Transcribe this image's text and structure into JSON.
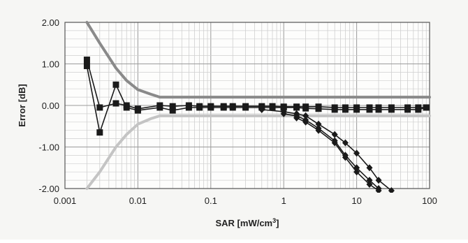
{
  "chart_data": {
    "type": "line",
    "title": "",
    "xlabel": "SAR [mW/cm",
    "xlabel_sup": "3",
    "xlabel_end": "]",
    "ylabel": "Error [dB]",
    "xscale": "log",
    "xlim": [
      0.001,
      100
    ],
    "ylim": [
      -2.0,
      2.0
    ],
    "grid": true,
    "x_ticks": [
      0.001,
      0.01,
      0.1,
      1,
      10,
      100
    ],
    "x_tick_labels": [
      "0.001",
      "0.01",
      "0.1",
      "1",
      "10",
      "100"
    ],
    "y_ticks": [
      2.0,
      1.0,
      0.0,
      -1.0,
      -2.0
    ],
    "y_tick_labels": [
      "2.00",
      "1.00",
      "0.00",
      "-1.00",
      "-2.00"
    ],
    "bounds": [
      {
        "color": "#8a8a8a",
        "points": [
          [
            0.002,
            2.0
          ],
          [
            0.003,
            1.5
          ],
          [
            0.005,
            0.9
          ],
          [
            0.007,
            0.6
          ],
          [
            0.01,
            0.38
          ],
          [
            0.015,
            0.27
          ],
          [
            0.02,
            0.2
          ],
          [
            100,
            0.2
          ]
        ]
      },
      {
        "color": "#c4c4c4",
        "points": [
          [
            0.002,
            -2.0
          ],
          [
            0.003,
            -1.6
          ],
          [
            0.005,
            -1.0
          ],
          [
            0.007,
            -0.7
          ],
          [
            0.01,
            -0.45
          ],
          [
            0.015,
            -0.32
          ],
          [
            0.02,
            -0.25
          ],
          [
            100,
            -0.25
          ]
        ]
      }
    ],
    "series": [
      {
        "marker": "square",
        "color": "#1a1a1a",
        "points": [
          [
            0.002,
            1.1
          ],
          [
            0.003,
            -0.05
          ],
          [
            0.005,
            0.05
          ],
          [
            0.007,
            0.0
          ],
          [
            0.01,
            -0.08
          ],
          [
            0.02,
            0.0
          ],
          [
            0.03,
            -0.02
          ],
          [
            0.05,
            0.0
          ],
          [
            0.07,
            -0.02
          ],
          [
            0.1,
            -0.02
          ],
          [
            0.15,
            -0.02
          ],
          [
            0.2,
            -0.02
          ],
          [
            0.3,
            -0.02
          ],
          [
            0.5,
            -0.02
          ],
          [
            0.7,
            -0.02
          ],
          [
            1,
            -0.03
          ],
          [
            1.5,
            -0.03
          ],
          [
            2,
            -0.03
          ],
          [
            3,
            -0.03
          ],
          [
            5,
            -0.05
          ],
          [
            7,
            -0.05
          ],
          [
            10,
            -0.05
          ],
          [
            15,
            -0.05
          ],
          [
            20,
            -0.05
          ],
          [
            30,
            -0.05
          ],
          [
            50,
            -0.05
          ],
          [
            70,
            -0.05
          ],
          [
            90,
            -0.05
          ]
        ]
      },
      {
        "marker": "square",
        "color": "#1a1a1a",
        "points": [
          [
            0.002,
            0.95
          ],
          [
            0.003,
            -0.65
          ],
          [
            0.005,
            0.5
          ],
          [
            0.007,
            -0.05
          ],
          [
            0.01,
            -0.12
          ],
          [
            0.02,
            -0.05
          ],
          [
            0.03,
            -0.12
          ],
          [
            0.05,
            -0.05
          ],
          [
            0.07,
            -0.05
          ],
          [
            0.1,
            -0.05
          ],
          [
            0.15,
            -0.05
          ],
          [
            0.2,
            -0.05
          ],
          [
            0.3,
            -0.05
          ],
          [
            0.5,
            -0.05
          ],
          [
            0.7,
            -0.05
          ],
          [
            1,
            -0.05
          ],
          [
            1.5,
            -0.05
          ],
          [
            2,
            -0.07
          ],
          [
            3,
            -0.08
          ],
          [
            5,
            -0.1
          ],
          [
            7,
            -0.1
          ],
          [
            10,
            -0.1
          ],
          [
            15,
            -0.1
          ],
          [
            20,
            -0.1
          ],
          [
            30,
            -0.1
          ],
          [
            50,
            -0.1
          ],
          [
            70,
            -0.1
          ],
          [
            90,
            -0.05
          ]
        ]
      },
      {
        "marker": "diamond",
        "color": "#1a1a1a",
        "points": [
          [
            0.5,
            -0.1
          ],
          [
            1,
            -0.15
          ],
          [
            1.5,
            -0.2
          ],
          [
            2,
            -0.25
          ],
          [
            3,
            -0.45
          ],
          [
            5,
            -0.7
          ],
          [
            7,
            -0.9
          ],
          [
            10,
            -1.15
          ],
          [
            15,
            -1.5
          ],
          [
            20,
            -1.8
          ],
          [
            30,
            -2.05
          ]
        ]
      },
      {
        "marker": "diamond",
        "color": "#1a1a1a",
        "points": [
          [
            1,
            -0.2
          ],
          [
            1.5,
            -0.25
          ],
          [
            2,
            -0.35
          ],
          [
            3,
            -0.55
          ],
          [
            5,
            -0.85
          ],
          [
            7,
            -1.2
          ],
          [
            10,
            -1.5
          ],
          [
            15,
            -1.8
          ],
          [
            20,
            -2.0
          ]
        ]
      },
      {
        "marker": "diamond",
        "color": "#1a1a1a",
        "points": [
          [
            1.5,
            -0.3
          ],
          [
            2,
            -0.4
          ],
          [
            3,
            -0.6
          ],
          [
            5,
            -0.9
          ],
          [
            7,
            -1.25
          ],
          [
            10,
            -1.6
          ],
          [
            15,
            -1.9
          ],
          [
            20,
            -2.05
          ]
        ]
      }
    ]
  }
}
